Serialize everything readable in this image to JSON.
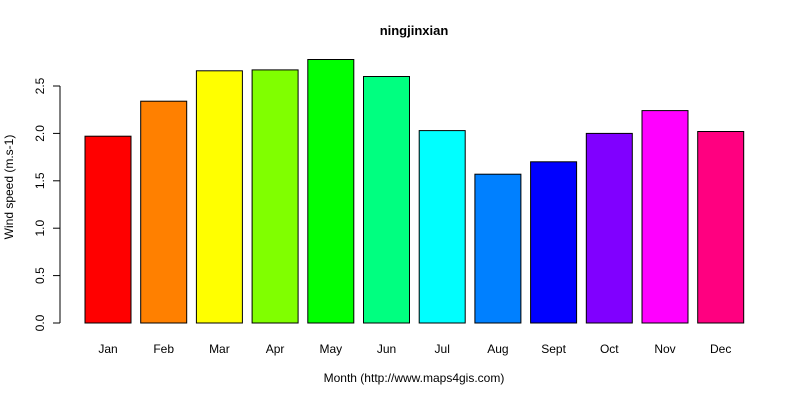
{
  "chart_data": {
    "type": "bar",
    "title": "ningjinxian",
    "xlabel": "Month (http://www.maps4gis.com)",
    "ylabel": "Wind speed (m.s-1)",
    "categories": [
      "Jan",
      "Feb",
      "Mar",
      "Apr",
      "May",
      "Jun",
      "Jul",
      "Aug",
      "Sept",
      "Oct",
      "Nov",
      "Dec"
    ],
    "values": [
      1.97,
      2.34,
      2.66,
      2.67,
      2.78,
      2.6,
      2.03,
      1.57,
      1.7,
      2.0,
      2.24,
      2.02
    ],
    "colors": [
      "#FF0000",
      "#FF8000",
      "#FFFF00",
      "#80FF00",
      "#00FF00",
      "#00FF80",
      "#00FFFF",
      "#0080FF",
      "#0000FF",
      "#8000FF",
      "#FF00FF",
      "#FF0080"
    ],
    "yticks": [
      "0.0",
      "0.5",
      "1.0",
      "1.5",
      "2.0",
      "2.5"
    ],
    "ylim": [
      0,
      2.8
    ],
    "grid": false,
    "legend": "none"
  }
}
